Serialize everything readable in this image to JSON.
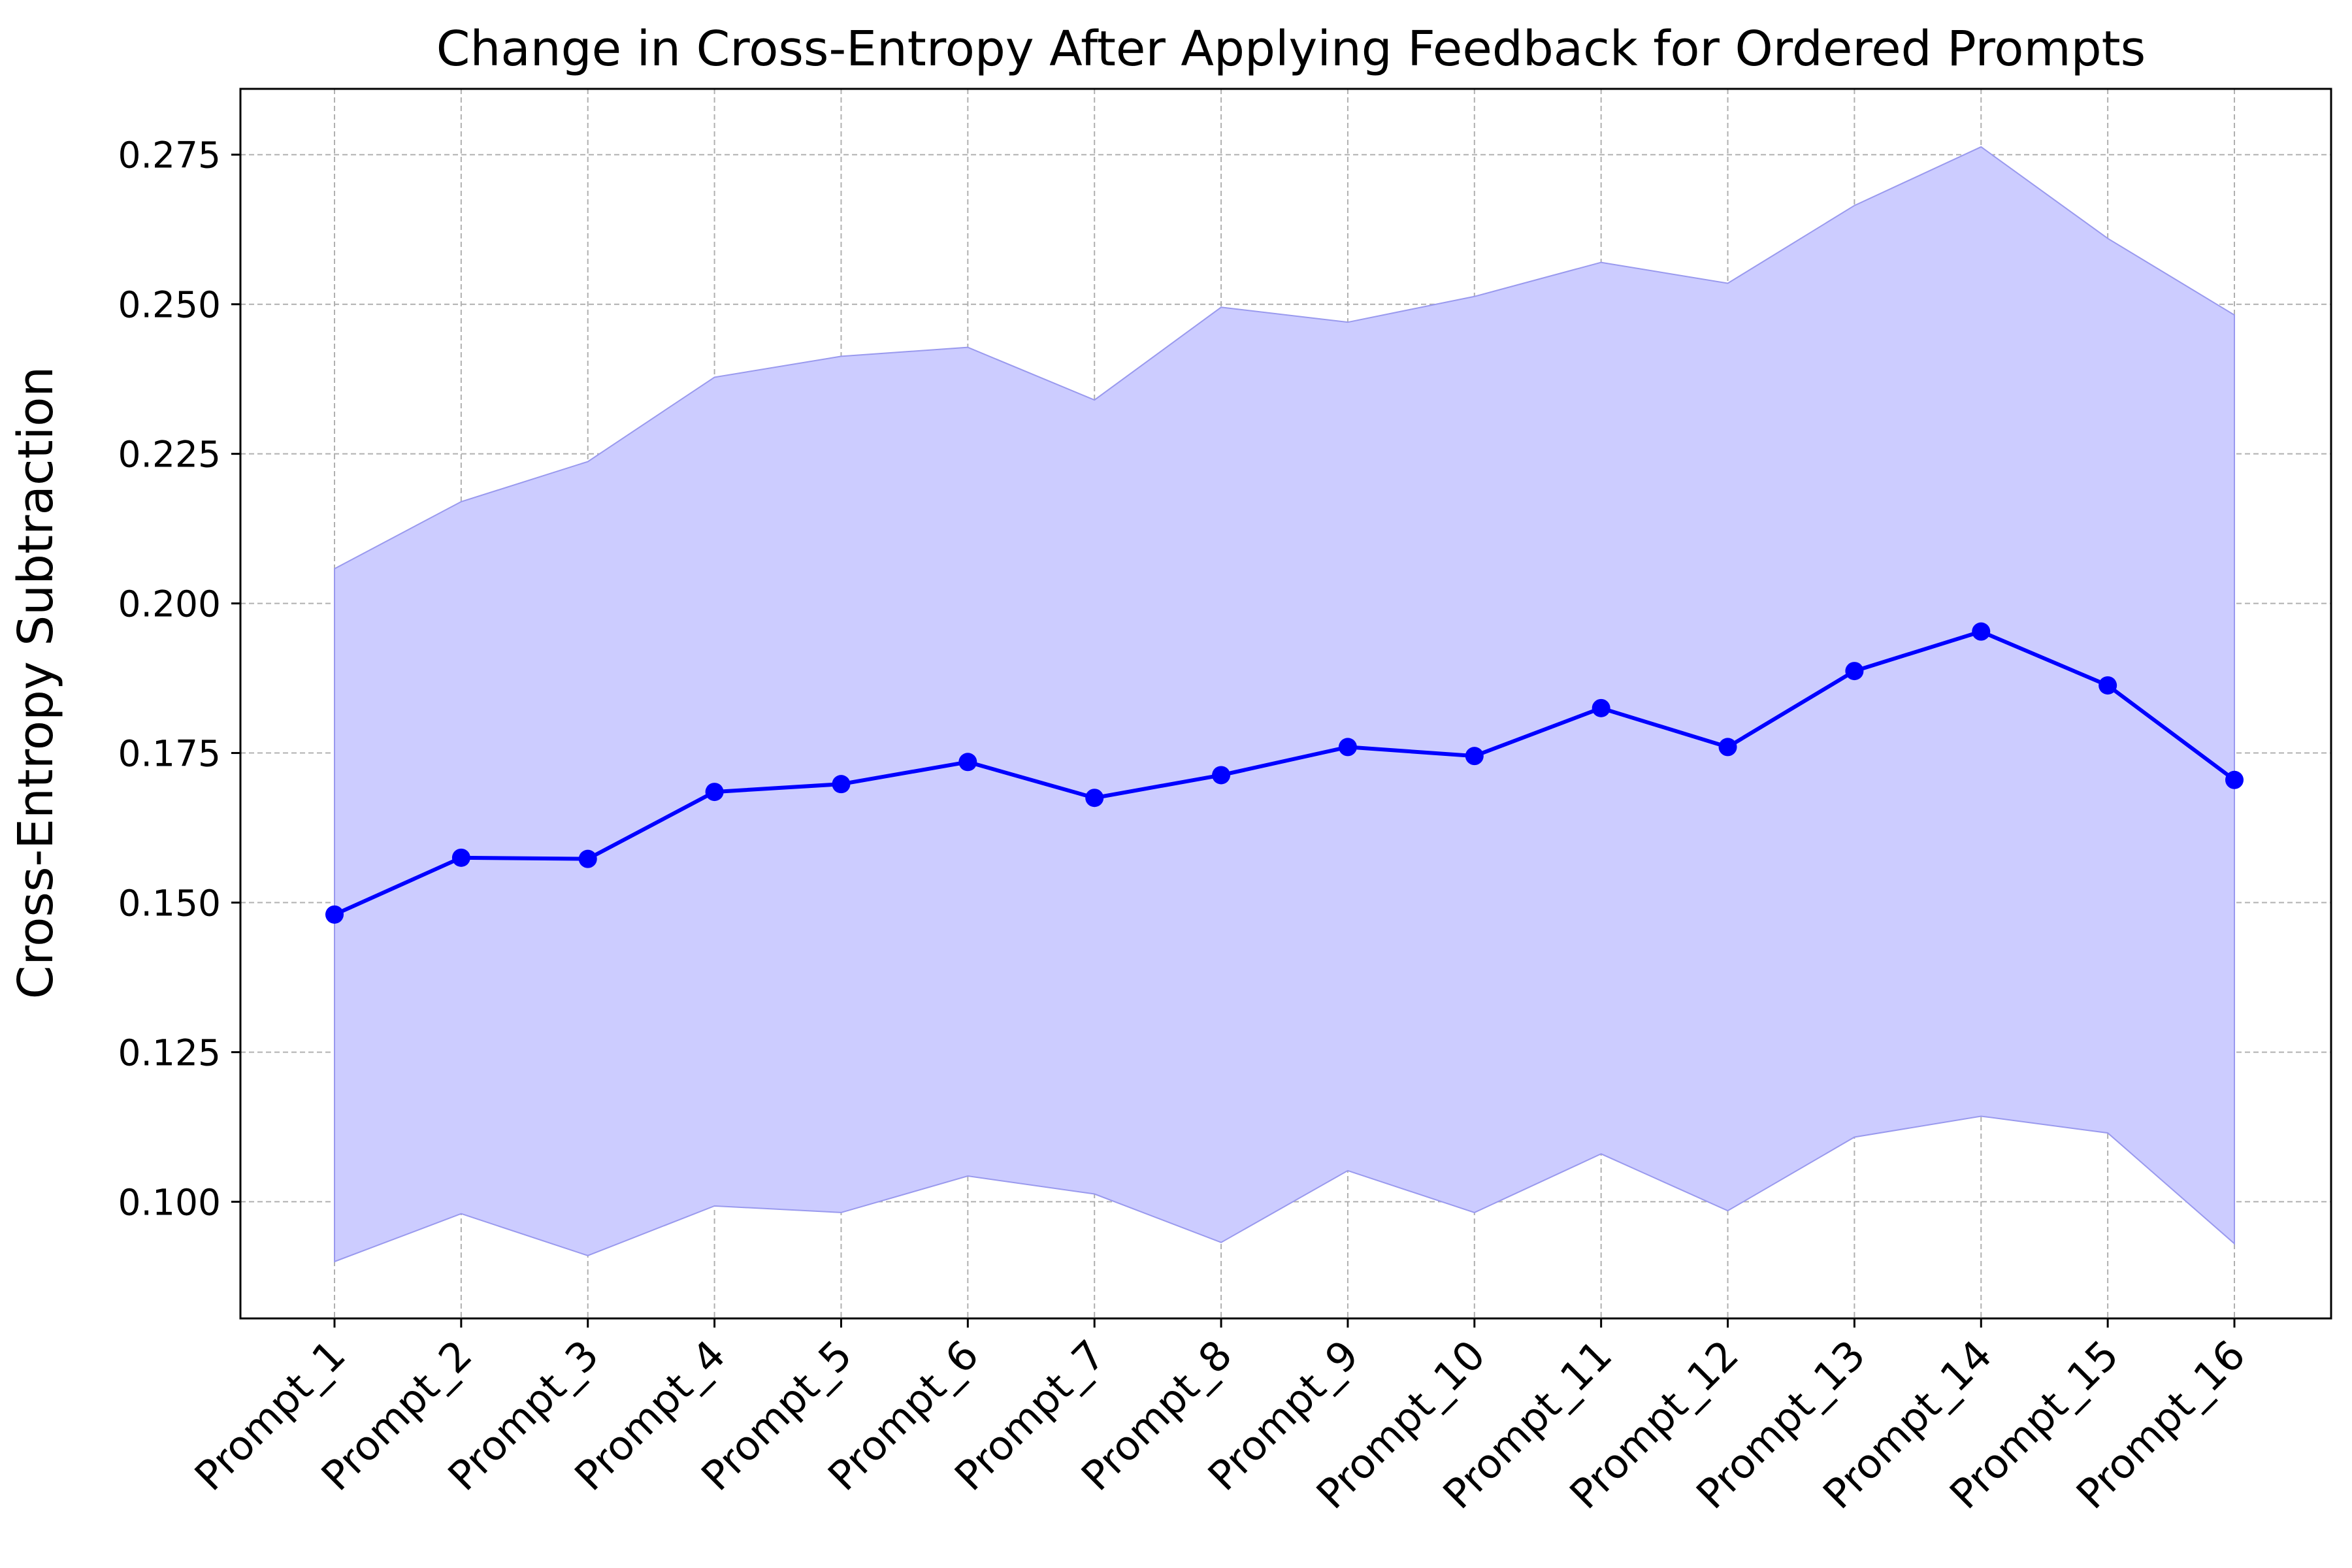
{
  "chart_data": {
    "type": "line",
    "title": "Change in Cross-Entropy After Applying Feedback for Ordered Prompts",
    "xlabel": "",
    "ylabel": "Cross-Entropy Subtraction",
    "categories": [
      "Prompt_1",
      "Prompt_2",
      "Prompt_3",
      "Prompt_4",
      "Prompt_5",
      "Prompt_6",
      "Prompt_7",
      "Prompt_8",
      "Prompt_9",
      "Prompt_10",
      "Prompt_11",
      "Prompt_12",
      "Prompt_13",
      "Prompt_14",
      "Prompt_15",
      "Prompt_16"
    ],
    "series": [
      {
        "values": [
          0.148,
          0.1575,
          0.1573,
          0.1685,
          0.1698,
          0.1735,
          0.1675,
          0.1713,
          0.176,
          0.1745,
          0.1825,
          0.176,
          0.1887,
          0.1953,
          0.1863,
          0.1705
        ],
        "upper": [
          0.2058,
          0.217,
          0.2237,
          0.2378,
          0.2413,
          0.2428,
          0.234,
          0.2495,
          0.247,
          0.2513,
          0.257,
          0.2535,
          0.2665,
          0.2763,
          0.261,
          0.2482
        ],
        "lower": [
          0.09,
          0.098,
          0.091,
          0.0993,
          0.0982,
          0.1043,
          0.1013,
          0.0932,
          0.1052,
          0.0982,
          0.108,
          0.0985,
          0.1108,
          0.1143,
          0.1115,
          0.093
        ],
        "color": "#0000ff",
        "band_color": "#ccccff"
      }
    ],
    "yticks": [
      "0.100",
      "0.125",
      "0.150",
      "0.175",
      "0.200",
      "0.225",
      "0.250",
      "0.275"
    ],
    "ylim": [
      0.0805,
      0.286
    ],
    "grid": true,
    "legend": "none"
  }
}
